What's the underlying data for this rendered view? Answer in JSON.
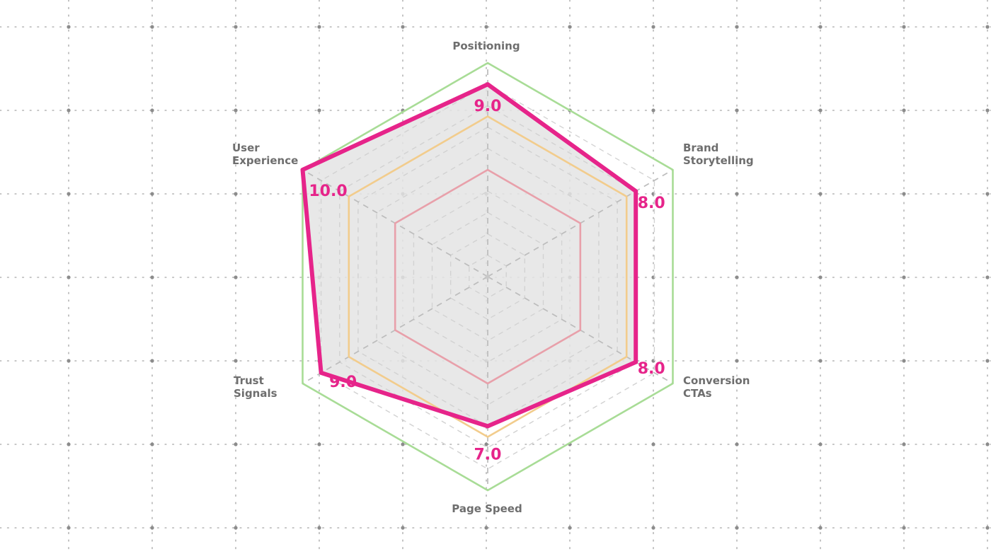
{
  "chart_data": {
    "type": "radar",
    "axes": [
      {
        "label_lines": [
          "Positioning"
        ],
        "value": 9.0,
        "value_text": "9.0"
      },
      {
        "label_lines": [
          "Brand",
          "Storytelling"
        ],
        "value": 8.0,
        "value_text": "8.0"
      },
      {
        "label_lines": [
          "Conversion",
          "CTAs"
        ],
        "value": 8.0,
        "value_text": "8.0"
      },
      {
        "label_lines": [
          "Page Speed"
        ],
        "value": 7.0,
        "value_text": "7.0"
      },
      {
        "label_lines": [
          "Trust",
          "Signals"
        ],
        "value": 9.0,
        "value_text": "9.0"
      },
      {
        "label_lines": [
          "User",
          "Experience"
        ],
        "value": 10.0,
        "value_text": "10.0"
      }
    ],
    "range": [
      0,
      10
    ],
    "reference_rings": [
      {
        "value": 5,
        "color": "#e8a0aa"
      },
      {
        "value": 7.5,
        "color": "#f2cc8c"
      },
      {
        "value": 10,
        "color": "#a8dc96"
      }
    ],
    "series_color": "#e6248a",
    "fill_color": "#e4e4e4",
    "label_color": "#6e6e6e",
    "background_grid": true,
    "legend": "none"
  }
}
